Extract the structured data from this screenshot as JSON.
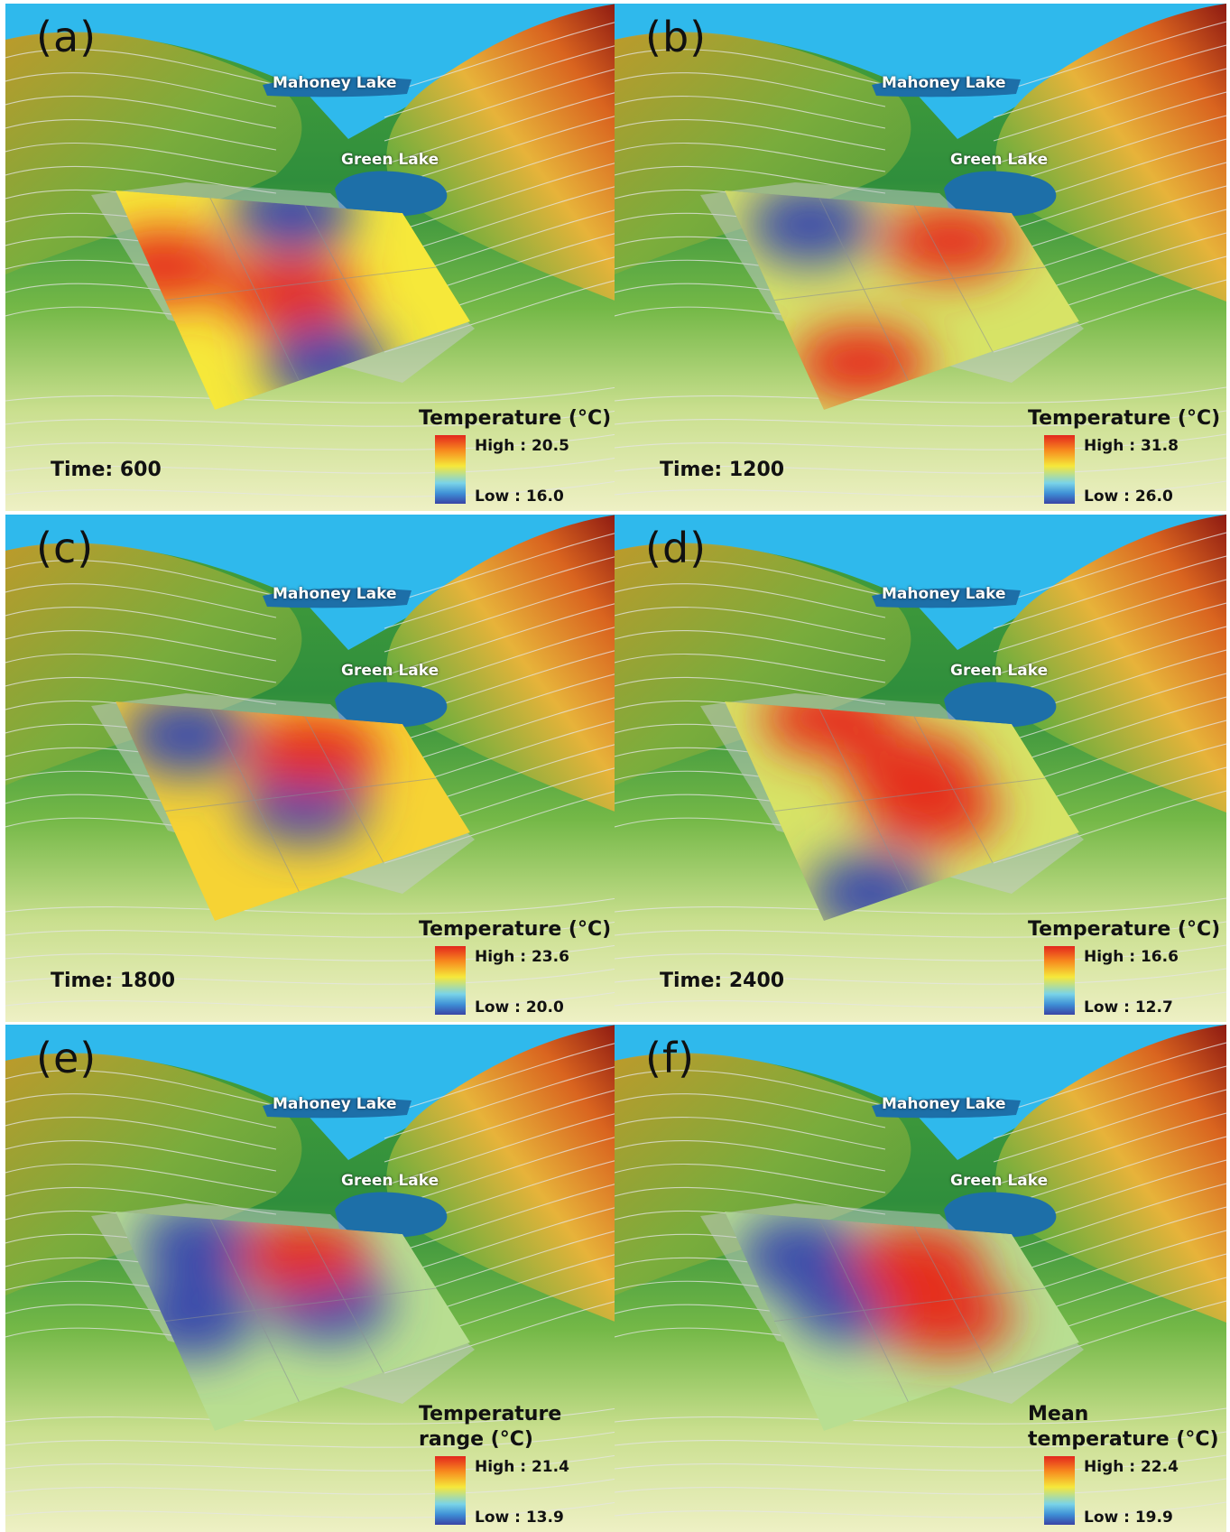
{
  "panels": [
    {
      "letter": "(a)",
      "lakes": {
        "mahoney": "Mahoney Lake",
        "green": "Green Lake"
      },
      "time": "Time: 600",
      "legend": {
        "title_lines": [
          "Temperature (°C)"
        ],
        "high": "High : 20.5",
        "low": "Low : 16.0"
      },
      "hot_spots": [
        [
          0.05,
          0.35
        ],
        [
          0.45,
          0.55
        ]
      ],
      "cold_spots": [
        [
          0.6,
          0.05
        ],
        [
          0.45,
          0.95
        ]
      ],
      "base_level": 0.55
    },
    {
      "letter": "(b)",
      "lakes": {
        "mahoney": "Mahoney Lake",
        "green": "Green Lake"
      },
      "time": "Time: 1200",
      "legend": {
        "title_lines": [
          "Temperature (°C)"
        ],
        "high": "High : 31.8",
        "low": "Low : 26.0"
      },
      "hot_spots": [
        [
          0.72,
          0.25
        ],
        [
          0.2,
          0.85
        ]
      ],
      "cold_spots": [
        [
          0.25,
          0.15
        ]
      ],
      "base_level": 0.5
    },
    {
      "letter": "(c)",
      "lakes": {
        "mahoney": "Mahoney Lake",
        "green": "Green Lake"
      },
      "time": "Time: 1800",
      "legend": {
        "title_lines": [
          "Temperature (°C)"
        ],
        "high": "High : 23.6",
        "low": "Low : 20.0"
      },
      "hot_spots": [
        [
          0.62,
          0.25
        ]
      ],
      "cold_spots": [
        [
          0.2,
          0.15
        ],
        [
          0.5,
          0.55
        ]
      ],
      "base_level": 0.6
    },
    {
      "letter": "(d)",
      "lakes": {
        "mahoney": "Mahoney Lake",
        "green": "Green Lake"
      },
      "time": "Time: 2400",
      "legend": {
        "title_lines": [
          "Temperature (°C)"
        ],
        "high": "High : 16.6",
        "low": "Low : 12.7"
      },
      "hot_spots": [
        [
          0.55,
          0.35
        ],
        [
          0.55,
          0.6
        ],
        [
          0.35,
          0.05
        ]
      ],
      "cold_spots": [
        [
          0.2,
          0.95
        ]
      ],
      "base_level": 0.5
    },
    {
      "letter": "(e)",
      "lakes": {
        "mahoney": "Mahoney Lake",
        "green": "Green Lake"
      },
      "time": "",
      "legend": {
        "title_lines": [
          "Temperature",
          "range (°C)"
        ],
        "high": "High : 21.4",
        "low": "Low : 13.9"
      },
      "hot_spots": [
        [
          0.6,
          0.2
        ]
      ],
      "cold_spots": [
        [
          0.25,
          0.15
        ],
        [
          0.6,
          0.5
        ],
        [
          0.1,
          0.5
        ]
      ],
      "base_level": 0.45
    },
    {
      "letter": "(f)",
      "lakes": {
        "mahoney": "Mahoney Lake",
        "green": "Green Lake"
      },
      "time": "",
      "legend": {
        "title_lines": [
          "Mean",
          "temperature (°C)"
        ],
        "high": "High : 22.4",
        "low": "Low : 19.9"
      },
      "hot_spots": [
        [
          0.6,
          0.25
        ],
        [
          0.6,
          0.6
        ]
      ],
      "cold_spots": [
        [
          0.2,
          0.2
        ],
        [
          0.3,
          0.45
        ]
      ],
      "base_level": 0.45
    }
  ],
  "colors": {
    "sky": "#2fb9ec",
    "lake": "#1d6fa8",
    "hot": "#e3261d",
    "warm": "#f6e83a",
    "cool": "#79d3e8",
    "cold": "#3944a6"
  }
}
